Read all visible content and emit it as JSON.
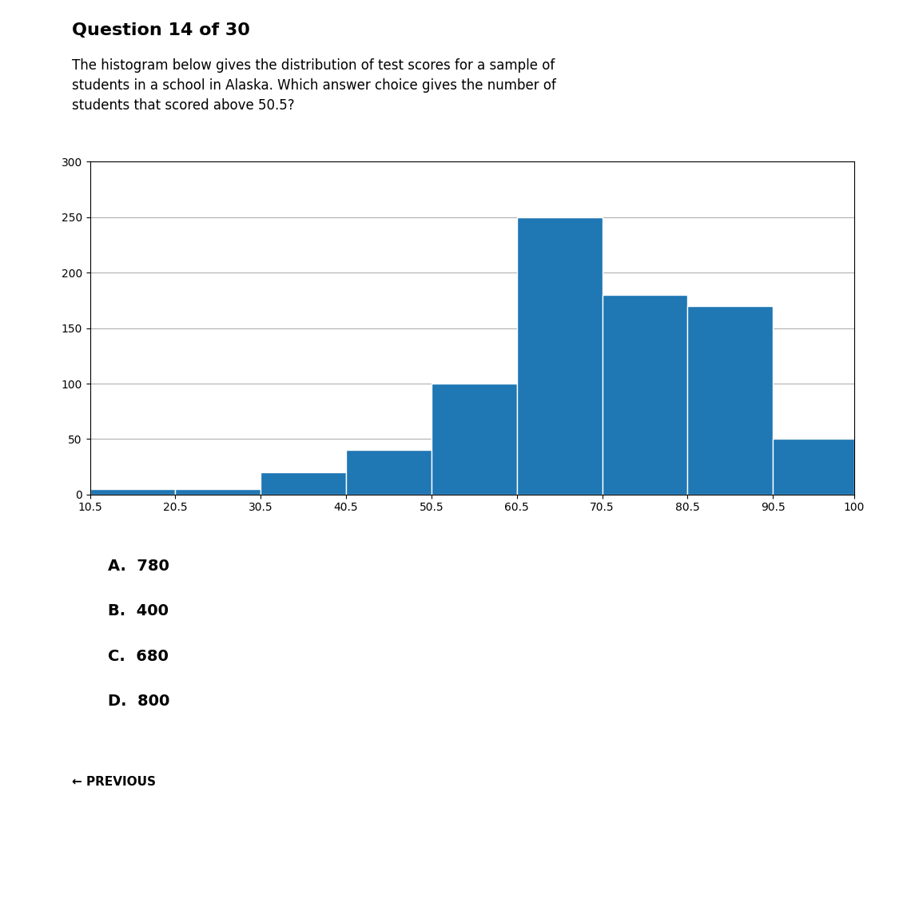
{
  "chart_data": {
    "type": "histogram",
    "title": "Question 14 of 30",
    "subtitle": "The histogram below gives the distribution of test scores for a sample of\nstudents in a school in Alaska. Which answer choice gives the number of\nstudents that scored above 50.5?",
    "bins": [
      10.5,
      20.5,
      30.5,
      40.5,
      50.5,
      60.5,
      70.5,
      80.5,
      90.5,
      100
    ],
    "values": [
      5,
      5,
      20,
      40,
      100,
      250,
      180,
      170,
      50
    ],
    "xlim": [
      10.5,
      100
    ],
    "xticks": [
      10.5,
      20.5,
      30.5,
      40.5,
      50.5,
      60.5,
      70.5,
      80.5,
      90.5,
      100
    ],
    "ylim": [
      0,
      300
    ],
    "yticks": [
      0,
      50,
      100,
      150,
      200,
      250,
      300
    ],
    "grid": "y",
    "annotations": [
      "A.  780",
      "B.  400",
      "C.  680",
      "D.  800",
      "← PREVIOUS"
    ]
  }
}
